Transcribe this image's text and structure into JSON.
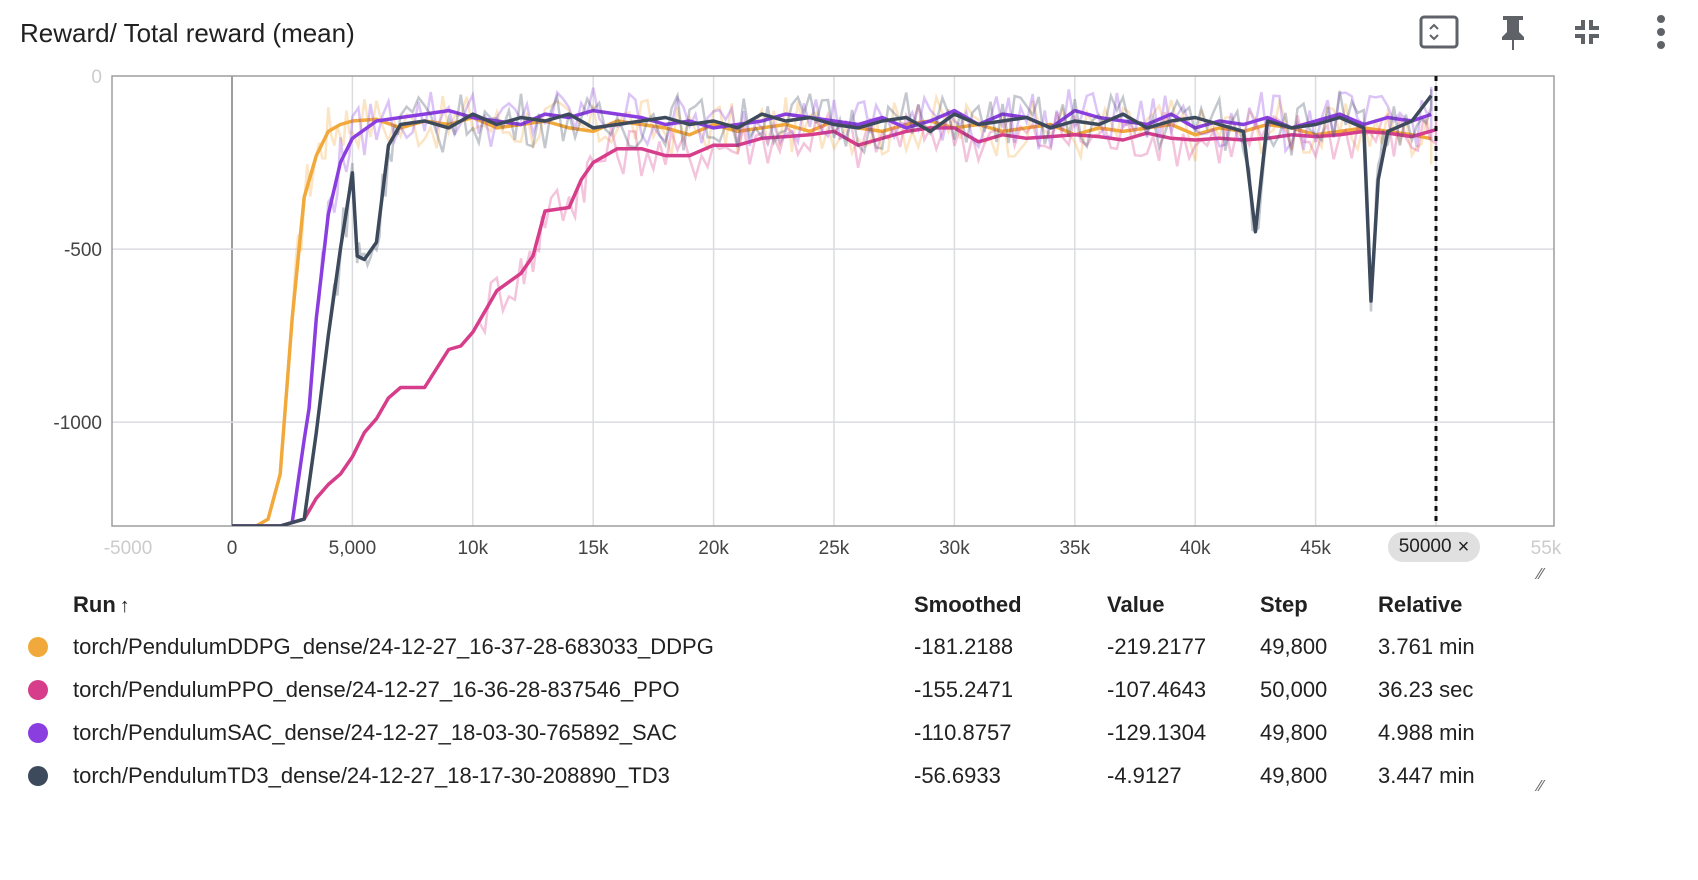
{
  "header": {
    "title": "Reward/ Total reward (mean)",
    "icons": [
      "fit-domain-icon",
      "pin-icon",
      "collapse-icon",
      "more-vert-icon"
    ]
  },
  "step_chip": {
    "label": "50000",
    "close": "×"
  },
  "table": {
    "headers": {
      "run": "Run",
      "sort": "↑",
      "smoothed": "Smoothed",
      "value": "Value",
      "step": "Step",
      "relative": "Relative"
    },
    "rows": [
      {
        "color": "#f2a93b",
        "run": "torch/PendulumDDPG_dense/24-12-27_16-37-28-683033_DDPG",
        "smoothed": "-181.2188",
        "value": "-219.2177",
        "step": "49,800",
        "relative": "3.761 min"
      },
      {
        "color": "#d63d8a",
        "run": "torch/PendulumPPO_dense/24-12-27_16-36-28-837546_PPO",
        "smoothed": "-155.2471",
        "value": "-107.4643",
        "step": "50,000",
        "relative": "36.23 sec"
      },
      {
        "color": "#8a3ee0",
        "run": "torch/PendulumSAC_dense/24-12-27_18-03-30-765892_SAC",
        "smoothed": "-110.8757",
        "value": "-129.1304",
        "step": "49,800",
        "relative": "4.988 min"
      },
      {
        "color": "#3d4a5c",
        "run": "torch/PendulumTD3_dense/24-12-27_18-17-30-208890_TD3",
        "smoothed": "-56.6933",
        "value": "-4.9127",
        "step": "49,800",
        "relative": "3.447 min"
      }
    ]
  },
  "chart_data": {
    "type": "line",
    "title": "Reward/ Total reward (mean)",
    "xlim": [
      -5000,
      55000
    ],
    "ylim": [
      -1300,
      0
    ],
    "grid": true,
    "x_tick_labels": [
      "-5000",
      "0",
      "5,000",
      "10k",
      "15k",
      "20k",
      "25k",
      "30k",
      "35k",
      "40k",
      "45k",
      "50000",
      "55k"
    ],
    "x_tick_values": [
      -5000,
      0,
      5000,
      10000,
      15000,
      20000,
      25000,
      30000,
      35000,
      40000,
      45000,
      50000,
      55000
    ],
    "y_tick_labels": [
      "0",
      "-500",
      "-1000"
    ],
    "y_tick_values": [
      0,
      -500,
      -1000
    ],
    "step_cursor": 50000,
    "series": [
      {
        "name": "torch/PendulumDDPG_dense/24-12-27_16-37-28-683033_DDPG",
        "color": "#f2a93b",
        "x": [
          0,
          1000,
          1500,
          2000,
          2500,
          3000,
          3500,
          4000,
          4500,
          5000,
          6000,
          7000,
          8000,
          9000,
          10000,
          11000,
          12000,
          13000,
          14000,
          15000,
          16000,
          17000,
          18000,
          19000,
          20000,
          21000,
          22000,
          23000,
          24000,
          25000,
          26000,
          27000,
          28000,
          29000,
          30000,
          31000,
          32000,
          33000,
          34000,
          35000,
          36000,
          37000,
          38000,
          39000,
          40000,
          41000,
          42000,
          43000,
          44000,
          45000,
          46000,
          47000,
          48000,
          49000,
          49800
        ],
        "y": [
          -1300,
          -1300,
          -1280,
          -1150,
          -700,
          -350,
          -230,
          -160,
          -140,
          -130,
          -125,
          -150,
          -130,
          -140,
          -120,
          -150,
          -140,
          -130,
          -150,
          -160,
          -130,
          -140,
          -150,
          -170,
          -140,
          -160,
          -150,
          -140,
          -160,
          -130,
          -150,
          -160,
          -140,
          -130,
          -150,
          -140,
          -160,
          -150,
          -140,
          -170,
          -150,
          -160,
          -150,
          -140,
          -170,
          -150,
          -160,
          -140,
          -150,
          -170,
          -160,
          -150,
          -160,
          -170,
          -181
        ]
      },
      {
        "name": "torch/PendulumPPO_dense/24-12-27_16-36-28-837546_PPO",
        "color": "#d63d8a",
        "x": [
          0,
          1000,
          2000,
          3000,
          3500,
          4000,
          4500,
          5000,
          5500,
          6000,
          6500,
          7000,
          8000,
          9000,
          9500,
          10000,
          11000,
          12000,
          12500,
          13000,
          14000,
          14500,
          15000,
          16000,
          17000,
          18000,
          19000,
          20000,
          21000,
          22000,
          23000,
          24000,
          25000,
          26000,
          27000,
          28000,
          29000,
          30000,
          31000,
          32000,
          33000,
          34000,
          35000,
          36000,
          37000,
          38000,
          39000,
          40000,
          41000,
          42000,
          43000,
          44000,
          45000,
          46000,
          47000,
          48000,
          49000,
          50000
        ],
        "y": [
          -1300,
          -1300,
          -1300,
          -1280,
          -1220,
          -1180,
          -1150,
          -1100,
          -1030,
          -990,
          -930,
          -900,
          -900,
          -790,
          -780,
          -740,
          -620,
          -570,
          -520,
          -390,
          -380,
          -300,
          -250,
          -210,
          -210,
          -230,
          -230,
          -200,
          -200,
          -180,
          -175,
          -170,
          -160,
          -200,
          -180,
          -160,
          -150,
          -150,
          -190,
          -170,
          -180,
          -175,
          -170,
          -175,
          -185,
          -165,
          -180,
          -185,
          -180,
          -185,
          -180,
          -170,
          -175,
          -170,
          -160,
          -165,
          -175,
          -155
        ]
      },
      {
        "name": "torch/PendulumSAC_dense/24-12-27_18-03-30-765892_SAC",
        "color": "#8a3ee0",
        "x": [
          0,
          1000,
          2000,
          2500,
          3000,
          3200,
          3500,
          4000,
          4500,
          5000,
          6000,
          7000,
          8000,
          9000,
          10000,
          11000,
          12000,
          13000,
          14000,
          15000,
          16000,
          17000,
          18000,
          19000,
          20000,
          21000,
          22000,
          23000,
          24000,
          25000,
          26000,
          27000,
          28000,
          29000,
          30000,
          31000,
          32000,
          33000,
          34000,
          35000,
          36000,
          37000,
          38000,
          39000,
          40000,
          41000,
          42000,
          43000,
          44000,
          45000,
          46000,
          47000,
          48000,
          49000,
          49800
        ],
        "y": [
          -1300,
          -1300,
          -1300,
          -1290,
          -1050,
          -960,
          -700,
          -400,
          -250,
          -180,
          -130,
          -120,
          -110,
          -100,
          -120,
          -130,
          -140,
          -110,
          -120,
          -100,
          -110,
          -120,
          -140,
          -130,
          -150,
          -140,
          -130,
          -110,
          -120,
          -130,
          -140,
          -120,
          -150,
          -130,
          -100,
          -140,
          -110,
          -120,
          -150,
          -100,
          -120,
          -130,
          -140,
          -110,
          -150,
          -130,
          -140,
          -120,
          -150,
          -130,
          -110,
          -140,
          -120,
          -130,
          -111
        ]
      },
      {
        "name": "torch/PendulumTD3_dense/24-12-27_18-17-30-208890_TD3",
        "color": "#3d4a5c",
        "x": [
          0,
          1000,
          2000,
          3000,
          3500,
          4000,
          4500,
          5000,
          5200,
          5500,
          6000,
          6500,
          7000,
          8000,
          9000,
          10000,
          11000,
          12000,
          13000,
          14000,
          15000,
          16000,
          17000,
          18000,
          19000,
          20000,
          21000,
          22000,
          23000,
          24000,
          25000,
          26000,
          27000,
          28000,
          29000,
          30000,
          31000,
          32000,
          33000,
          34000,
          35000,
          36000,
          37000,
          38000,
          39000,
          40000,
          41000,
          42000,
          42500,
          43000,
          44000,
          45000,
          46000,
          47000,
          47300,
          47600,
          48000,
          49000,
          49800
        ],
        "y": [
          -1300,
          -1300,
          -1300,
          -1280,
          -1030,
          -750,
          -500,
          -280,
          -520,
          -530,
          -480,
          -200,
          -140,
          -130,
          -150,
          -110,
          -140,
          -120,
          -130,
          -110,
          -150,
          -140,
          -130,
          -120,
          -140,
          -130,
          -150,
          -110,
          -130,
          -120,
          -140,
          -150,
          -130,
          -120,
          -160,
          -110,
          -140,
          -130,
          -120,
          -150,
          -130,
          -140,
          -110,
          -150,
          -130,
          -120,
          -140,
          -160,
          -450,
          -130,
          -150,
          -140,
          -120,
          -150,
          -650,
          -300,
          -160,
          -130,
          -57
        ]
      }
    ]
  }
}
